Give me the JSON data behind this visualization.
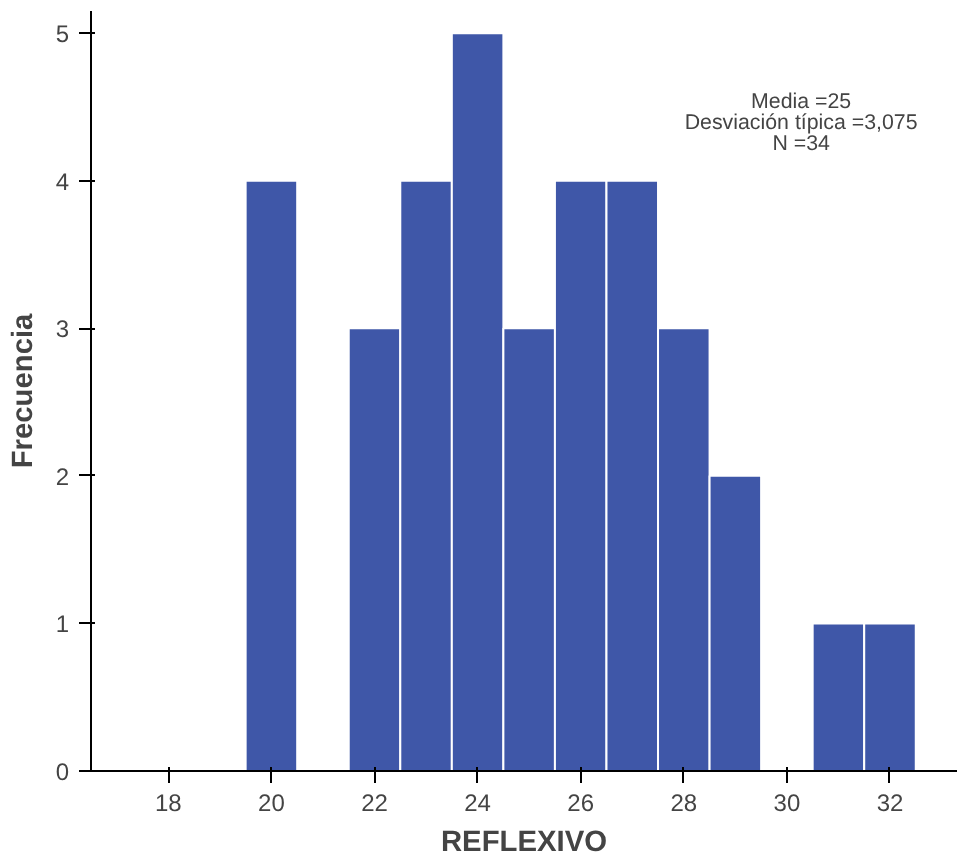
{
  "chart_data": {
    "type": "histogram",
    "xlabel": "REFLEXIVO",
    "ylabel": "Frecuencia",
    "bins": [
      19.5,
      20.5,
      21.5,
      22.5,
      23.5,
      24.5,
      25.5,
      26.5,
      27.5,
      28.5,
      29.5,
      30.5,
      31.5,
      32.5
    ],
    "values": [
      4,
      0,
      3,
      4,
      5,
      3,
      4,
      4,
      3,
      2,
      0,
      1,
      1
    ],
    "color": "#3f57a8",
    "xlim": [
      16.5,
      33.3
    ],
    "xticks": [
      18,
      20,
      22,
      24,
      26,
      28,
      30,
      32
    ],
    "ylim": [
      0,
      5.15
    ],
    "yticks": [
      0,
      1,
      2,
      3,
      4,
      5
    ],
    "grid": false,
    "annotations": [
      "Media =25",
      "Desviación típica =3,075",
      "N =34"
    ]
  }
}
